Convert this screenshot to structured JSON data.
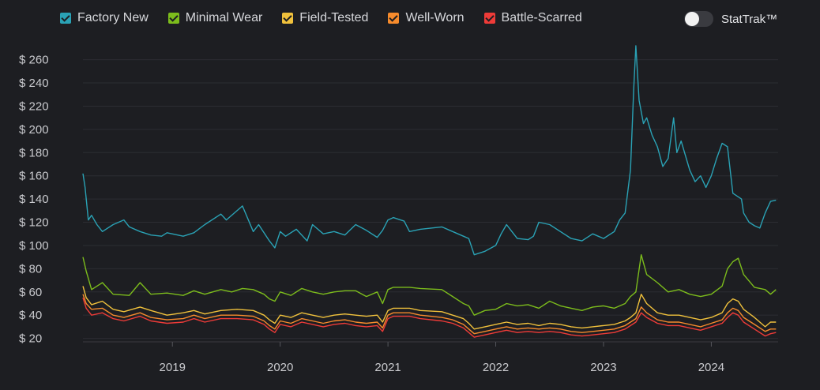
{
  "legend": [
    {
      "label": "Factory New",
      "color": "#2aa2b5"
    },
    {
      "label": "Minimal Wear",
      "color": "#7cbc1c"
    },
    {
      "label": "Field-Tested",
      "color": "#f0c13c"
    },
    {
      "label": "Well-Worn",
      "color": "#f68b2c"
    },
    {
      "label": "Battle-Scarred",
      "color": "#ee3b38"
    }
  ],
  "toggle": {
    "label": "StatTrak™",
    "on": false
  },
  "chart_data": {
    "type": "line",
    "ylim": [
      17,
      272
    ],
    "xlim": [
      2018.17,
      2024.62
    ],
    "yticks": [
      20,
      40,
      60,
      80,
      100,
      120,
      140,
      160,
      180,
      200,
      220,
      240,
      260
    ],
    "ytick_labels": [
      "$ 20",
      "$ 40",
      "$ 60",
      "$ 80",
      "$ 100",
      "$ 120",
      "$ 140",
      "$ 160",
      "$ 180",
      "$ 200",
      "$ 220",
      "$ 240",
      "$ 260"
    ],
    "xticks": [
      2019,
      2020,
      2021,
      2022,
      2023,
      2024
    ],
    "xtick_labels": [
      "2019",
      "2020",
      "2021",
      "2022",
      "2023",
      "2024"
    ],
    "grid": true,
    "legend_position": "top",
    "series": [
      {
        "name": "Factory New",
        "color": "#2aa2b5",
        "x": [
          2018.17,
          2018.19,
          2018.22,
          2018.25,
          2018.3,
          2018.35,
          2018.45,
          2018.55,
          2018.6,
          2018.7,
          2018.8,
          2018.9,
          2018.95,
          2019.1,
          2019.2,
          2019.3,
          2019.45,
          2019.5,
          2019.65,
          2019.75,
          2019.8,
          2019.9,
          2019.95,
          2020.0,
          2020.05,
          2020.15,
          2020.25,
          2020.3,
          2020.4,
          2020.5,
          2020.6,
          2020.7,
          2020.8,
          2020.9,
          2020.95,
          2021.0,
          2021.05,
          2021.15,
          2021.2,
          2021.3,
          2021.5,
          2021.6,
          2021.7,
          2021.75,
          2021.8,
          2021.9,
          2022.0,
          2022.05,
          2022.1,
          2022.15,
          2022.2,
          2022.3,
          2022.35,
          2022.4,
          2022.5,
          2022.6,
          2022.7,
          2022.8,
          2022.9,
          2022.95,
          2023.0,
          2023.1,
          2023.15,
          2023.2,
          2023.25,
          2023.28,
          2023.3,
          2023.33,
          2023.37,
          2023.4,
          2023.45,
          2023.5,
          2023.55,
          2023.6,
          2023.65,
          2023.68,
          2023.72,
          2023.8,
          2023.85,
          2023.9,
          2023.95,
          2024.0,
          2024.05,
          2024.1,
          2024.15,
          2024.2,
          2024.28,
          2024.3,
          2024.35,
          2024.4,
          2024.45,
          2024.5,
          2024.55,
          2024.6
        ],
        "y": [
          162,
          150,
          122,
          126,
          118,
          112,
          118,
          122,
          116,
          112,
          109,
          108,
          111,
          108,
          111,
          118,
          127,
          122,
          134,
          112,
          118,
          104,
          98,
          112,
          108,
          114,
          104,
          118,
          110,
          112,
          109,
          118,
          113,
          107,
          113,
          122,
          124,
          121,
          112,
          114,
          116,
          112,
          108,
          106,
          92,
          95,
          100,
          110,
          118,
          112,
          106,
          105,
          108,
          120,
          118,
          112,
          106,
          104,
          110,
          108,
          106,
          112,
          122,
          128,
          165,
          235,
          272,
          225,
          205,
          210,
          195,
          185,
          168,
          175,
          210,
          180,
          190,
          165,
          155,
          160,
          150,
          160,
          175,
          188,
          185,
          145,
          140,
          128,
          120,
          117,
          115,
          128,
          138,
          139
        ]
      },
      {
        "name": "Minimal Wear",
        "color": "#7cbc1c",
        "x": [
          2018.17,
          2018.2,
          2018.25,
          2018.35,
          2018.45,
          2018.6,
          2018.7,
          2018.8,
          2018.95,
          2019.1,
          2019.2,
          2019.3,
          2019.45,
          2019.55,
          2019.65,
          2019.75,
          2019.85,
          2019.9,
          2019.95,
          2020.0,
          2020.1,
          2020.2,
          2020.3,
          2020.4,
          2020.5,
          2020.6,
          2020.7,
          2020.8,
          2020.9,
          2020.95,
          2021.0,
          2021.05,
          2021.15,
          2021.2,
          2021.3,
          2021.5,
          2021.6,
          2021.7,
          2021.75,
          2021.8,
          2021.9,
          2022.0,
          2022.1,
          2022.2,
          2022.3,
          2022.4,
          2022.5,
          2022.6,
          2022.7,
          2022.8,
          2022.9,
          2023.0,
          2023.1,
          2023.2,
          2023.25,
          2023.3,
          2023.35,
          2023.4,
          2023.5,
          2023.6,
          2023.7,
          2023.8,
          2023.9,
          2024.0,
          2024.1,
          2024.15,
          2024.2,
          2024.25,
          2024.3,
          2024.4,
          2024.5,
          2024.55,
          2024.6
        ],
        "y": [
          90,
          78,
          62,
          68,
          58,
          57,
          68,
          58,
          59,
          57,
          61,
          58,
          62,
          60,
          63,
          62,
          58,
          54,
          52,
          60,
          57,
          63,
          60,
          58,
          60,
          61,
          61,
          56,
          60,
          50,
          62,
          64,
          64,
          64,
          63,
          62,
          56,
          50,
          48,
          40,
          44,
          45,
          50,
          48,
          49,
          46,
          52,
          48,
          46,
          44,
          47,
          48,
          46,
          50,
          56,
          60,
          92,
          75,
          68,
          60,
          62,
          58,
          56,
          58,
          65,
          80,
          86,
          89,
          75,
          64,
          62,
          58,
          62
        ]
      },
      {
        "name": "Field-Tested",
        "color": "#f0c13c",
        "x": [
          2018.17,
          2018.2,
          2018.25,
          2018.35,
          2018.45,
          2018.55,
          2018.7,
          2018.8,
          2018.95,
          2019.1,
          2019.2,
          2019.3,
          2019.45,
          2019.6,
          2019.75,
          2019.85,
          2019.9,
          2019.95,
          2020.0,
          2020.1,
          2020.2,
          2020.3,
          2020.4,
          2020.5,
          2020.6,
          2020.7,
          2020.8,
          2020.9,
          2020.95,
          2021.0,
          2021.05,
          2021.15,
          2021.2,
          2021.3,
          2021.5,
          2021.6,
          2021.7,
          2021.75,
          2021.8,
          2021.9,
          2022.0,
          2022.1,
          2022.2,
          2022.3,
          2022.4,
          2022.5,
          2022.6,
          2022.7,
          2022.8,
          2022.9,
          2023.0,
          2023.1,
          2023.2,
          2023.25,
          2023.3,
          2023.35,
          2023.4,
          2023.5,
          2023.6,
          2023.7,
          2023.8,
          2023.9,
          2024.0,
          2024.1,
          2024.15,
          2024.2,
          2024.25,
          2024.3,
          2024.4,
          2024.5,
          2024.55,
          2024.6
        ],
        "y": [
          65,
          55,
          49,
          52,
          45,
          43,
          47,
          44,
          40,
          42,
          44,
          41,
          44,
          45,
          44,
          40,
          36,
          33,
          40,
          38,
          42,
          40,
          38,
          40,
          41,
          40,
          39,
          40,
          34,
          44,
          46,
          46,
          46,
          44,
          43,
          40,
          37,
          33,
          28,
          30,
          32,
          34,
          32,
          33,
          31,
          33,
          32,
          30,
          29,
          30,
          31,
          32,
          35,
          38,
          42,
          58,
          50,
          42,
          40,
          40,
          38,
          36,
          38,
          42,
          50,
          54,
          52,
          45,
          38,
          30,
          34,
          34
        ]
      },
      {
        "name": "Well-Worn",
        "color": "#f68b2c",
        "x": [
          2018.17,
          2018.2,
          2018.25,
          2018.35,
          2018.45,
          2018.55,
          2018.7,
          2018.8,
          2018.95,
          2019.1,
          2019.2,
          2019.3,
          2019.45,
          2019.6,
          2019.75,
          2019.85,
          2019.9,
          2019.95,
          2020.0,
          2020.1,
          2020.2,
          2020.3,
          2020.4,
          2020.5,
          2020.6,
          2020.7,
          2020.8,
          2020.9,
          2020.95,
          2021.0,
          2021.05,
          2021.15,
          2021.2,
          2021.3,
          2021.5,
          2021.6,
          2021.7,
          2021.75,
          2021.8,
          2021.9,
          2022.0,
          2022.1,
          2022.2,
          2022.3,
          2022.4,
          2022.5,
          2022.6,
          2022.7,
          2022.8,
          2022.9,
          2023.0,
          2023.1,
          2023.2,
          2023.25,
          2023.3,
          2023.35,
          2023.4,
          2023.5,
          2023.6,
          2023.7,
          2023.8,
          2023.9,
          2024.0,
          2024.1,
          2024.15,
          2024.2,
          2024.25,
          2024.3,
          2024.4,
          2024.5,
          2024.55,
          2024.6
        ],
        "y": [
          58,
          50,
          45,
          46,
          40,
          38,
          42,
          38,
          36,
          37,
          40,
          37,
          40,
          40,
          39,
          35,
          31,
          28,
          35,
          33,
          37,
          35,
          33,
          35,
          36,
          34,
          33,
          34,
          29,
          40,
          42,
          42,
          42,
          40,
          38,
          36,
          32,
          28,
          24,
          26,
          28,
          30,
          28,
          29,
          28,
          29,
          28,
          26,
          25,
          26,
          27,
          28,
          31,
          34,
          37,
          47,
          42,
          36,
          34,
          34,
          32,
          30,
          33,
          36,
          42,
          46,
          44,
          38,
          32,
          26,
          28,
          28
        ]
      },
      {
        "name": "Battle-Scarred",
        "color": "#ee3b38",
        "x": [
          2018.17,
          2018.2,
          2018.25,
          2018.35,
          2018.45,
          2018.55,
          2018.7,
          2018.8,
          2018.95,
          2019.1,
          2019.2,
          2019.3,
          2019.45,
          2019.6,
          2019.75,
          2019.85,
          2019.9,
          2019.95,
          2020.0,
          2020.1,
          2020.2,
          2020.3,
          2020.4,
          2020.5,
          2020.6,
          2020.7,
          2020.8,
          2020.9,
          2020.95,
          2021.0,
          2021.05,
          2021.15,
          2021.2,
          2021.3,
          2021.5,
          2021.6,
          2021.7,
          2021.75,
          2021.8,
          2021.9,
          2022.0,
          2022.1,
          2022.2,
          2022.3,
          2022.4,
          2022.5,
          2022.6,
          2022.7,
          2022.8,
          2022.9,
          2023.0,
          2023.1,
          2023.2,
          2023.25,
          2023.3,
          2023.35,
          2023.4,
          2023.5,
          2023.6,
          2023.7,
          2023.8,
          2023.9,
          2024.0,
          2024.1,
          2024.15,
          2024.2,
          2024.25,
          2024.3,
          2024.4,
          2024.5,
          2024.55,
          2024.6
        ],
        "y": [
          55,
          46,
          40,
          42,
          37,
          35,
          39,
          35,
          33,
          34,
          37,
          34,
          37,
          37,
          36,
          32,
          28,
          25,
          32,
          30,
          34,
          32,
          30,
          32,
          33,
          31,
          30,
          31,
          26,
          37,
          39,
          39,
          39,
          37,
          35,
          33,
          29,
          25,
          21,
          23,
          25,
          27,
          25,
          26,
          25,
          26,
          25,
          23,
          22,
          23,
          24,
          25,
          28,
          31,
          34,
          42,
          38,
          33,
          31,
          31,
          29,
          27,
          30,
          33,
          38,
          42,
          40,
          34,
          28,
          22,
          24,
          25
        ]
      }
    ]
  }
}
